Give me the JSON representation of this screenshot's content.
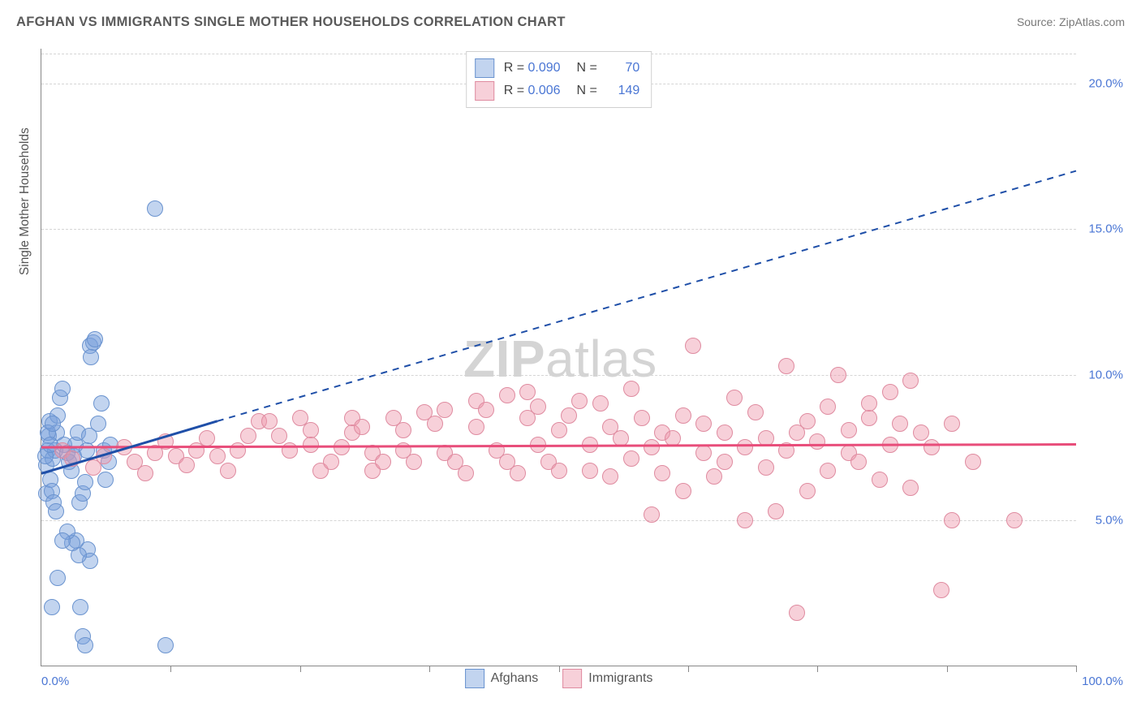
{
  "title": "AFGHAN VS IMMIGRANTS SINGLE MOTHER HOUSEHOLDS CORRELATION CHART",
  "source": "Source: ZipAtlas.com",
  "watermark_bold": "ZIP",
  "watermark_rest": "atlas",
  "chart": {
    "type": "scatter",
    "yaxis_label": "Single Mother Households",
    "xlim": [
      0,
      100
    ],
    "ylim": [
      0,
      21.2
    ],
    "yticks": [
      5.0,
      10.0,
      15.0,
      20.0
    ],
    "xticks_major": [
      0,
      100
    ],
    "xticks_minor": [
      12.5,
      25,
      37.5,
      50,
      62.5,
      75,
      87.5,
      100
    ],
    "xtick_labels": {
      "0": "0.0%",
      "100": "100.0%"
    },
    "ytick_format": "{v}.0%",
    "background_color": "#ffffff",
    "grid_color": "#d5d5d5",
    "axis_color": "#888888",
    "label_color": "#4a76d4",
    "point_radius": 9,
    "series": [
      {
        "name": "Afghans",
        "fill": "rgba(120,160,220,0.45)",
        "stroke": "#6a93cf",
        "line_color": "#1f4fa8",
        "R": "0.090",
        "N": "70",
        "trend_solid": {
          "x1": 0,
          "y1": 6.6,
          "x2": 17,
          "y2": 8.4
        },
        "trend_dash": {
          "x1": 17,
          "y1": 8.4,
          "x2": 100,
          "y2": 17.0
        },
        "points": [
          [
            0.5,
            6.9
          ],
          [
            0.6,
            7.4
          ],
          [
            0.7,
            7.9
          ],
          [
            0.8,
            8.4
          ],
          [
            0.5,
            5.9
          ],
          [
            0.9,
            6.4
          ],
          [
            1.0,
            6.0
          ],
          [
            1.2,
            5.6
          ],
          [
            1.4,
            5.3
          ],
          [
            1.1,
            7.1
          ],
          [
            1.3,
            7.4
          ],
          [
            1.5,
            8.0
          ],
          [
            1.6,
            8.6
          ],
          [
            1.8,
            9.2
          ],
          [
            2.0,
            9.5
          ],
          [
            2.2,
            7.6
          ],
          [
            0.4,
            7.2
          ],
          [
            0.6,
            8.0
          ],
          [
            0.9,
            7.6
          ],
          [
            1.1,
            8.3
          ],
          [
            2.5,
            7.3
          ],
          [
            2.7,
            7.0
          ],
          [
            2.9,
            6.7
          ],
          [
            3.1,
            7.2
          ],
          [
            3.3,
            7.6
          ],
          [
            3.5,
            8.0
          ],
          [
            3.7,
            5.6
          ],
          [
            4.0,
            5.9
          ],
          [
            4.2,
            6.3
          ],
          [
            4.4,
            7.4
          ],
          [
            4.6,
            7.9
          ],
          [
            4.7,
            11.0
          ],
          [
            4.8,
            10.6
          ],
          [
            5.0,
            11.1
          ],
          [
            5.2,
            11.2
          ],
          [
            4.5,
            4.0
          ],
          [
            4.7,
            3.6
          ],
          [
            3.8,
            2.0
          ],
          [
            4.0,
            1.0
          ],
          [
            4.2,
            0.7
          ],
          [
            12.0,
            0.7
          ],
          [
            11.0,
            15.7
          ],
          [
            3.4,
            4.3
          ],
          [
            3.6,
            3.8
          ],
          [
            3.0,
            4.2
          ],
          [
            2.5,
            4.6
          ],
          [
            2.0,
            4.3
          ],
          [
            1.6,
            3.0
          ],
          [
            1.0,
            2.0
          ],
          [
            5.5,
            8.3
          ],
          [
            5.8,
            9.0
          ],
          [
            6.0,
            7.4
          ],
          [
            6.2,
            6.4
          ],
          [
            6.5,
            7.0
          ],
          [
            6.7,
            7.6
          ]
        ]
      },
      {
        "name": "Immigrants",
        "fill": "rgba(238,150,170,0.45)",
        "stroke": "#df8ba0",
        "line_color": "#e84d7a",
        "R": "0.006",
        "N": "149",
        "trend_solid": {
          "x1": 0,
          "y1": 7.5,
          "x2": 100,
          "y2": 7.6
        },
        "points": [
          [
            2,
            7.4
          ],
          [
            3,
            7.1
          ],
          [
            5,
            6.8
          ],
          [
            6,
            7.2
          ],
          [
            8,
            7.5
          ],
          [
            9,
            7.0
          ],
          [
            10,
            6.6
          ],
          [
            11,
            7.3
          ],
          [
            12,
            7.7
          ],
          [
            13,
            7.2
          ],
          [
            14,
            6.9
          ],
          [
            15,
            7.4
          ],
          [
            16,
            7.8
          ],
          [
            17,
            7.2
          ],
          [
            18,
            6.7
          ],
          [
            19,
            7.4
          ],
          [
            20,
            7.9
          ],
          [
            21,
            8.4
          ],
          [
            22,
            8.4
          ],
          [
            23,
            7.9
          ],
          [
            24,
            7.4
          ],
          [
            25,
            8.5
          ],
          [
            26,
            8.1
          ],
          [
            26,
            7.6
          ],
          [
            27,
            6.7
          ],
          [
            28,
            7.0
          ],
          [
            29,
            7.5
          ],
          [
            30,
            8.0
          ],
          [
            30,
            8.5
          ],
          [
            31,
            8.2
          ],
          [
            32,
            7.3
          ],
          [
            32,
            6.7
          ],
          [
            33,
            7.0
          ],
          [
            34,
            8.5
          ],
          [
            35,
            8.1
          ],
          [
            35,
            7.4
          ],
          [
            36,
            7.0
          ],
          [
            37,
            8.7
          ],
          [
            38,
            8.3
          ],
          [
            39,
            8.8
          ],
          [
            39,
            7.3
          ],
          [
            40,
            7.0
          ],
          [
            41,
            6.6
          ],
          [
            42,
            9.1
          ],
          [
            42,
            8.2
          ],
          [
            43,
            8.8
          ],
          [
            44,
            7.4
          ],
          [
            45,
            7.0
          ],
          [
            45,
            9.3
          ],
          [
            46,
            6.6
          ],
          [
            47,
            8.5
          ],
          [
            47,
            9.4
          ],
          [
            48,
            8.9
          ],
          [
            48,
            7.6
          ],
          [
            49,
            7.0
          ],
          [
            50,
            6.7
          ],
          [
            50,
            8.1
          ],
          [
            51,
            8.6
          ],
          [
            52,
            9.1
          ],
          [
            53,
            7.6
          ],
          [
            53,
            6.7
          ],
          [
            54,
            9.0
          ],
          [
            55,
            8.2
          ],
          [
            55,
            6.5
          ],
          [
            56,
            7.8
          ],
          [
            57,
            7.1
          ],
          [
            57,
            9.5
          ],
          [
            58,
            8.5
          ],
          [
            59,
            7.5
          ],
          [
            59,
            5.2
          ],
          [
            60,
            8.0
          ],
          [
            60,
            6.6
          ],
          [
            61,
            7.8
          ],
          [
            62,
            8.6
          ],
          [
            62,
            6.0
          ],
          [
            63,
            11.0
          ],
          [
            64,
            7.3
          ],
          [
            64,
            8.3
          ],
          [
            65,
            6.5
          ],
          [
            66,
            7.0
          ],
          [
            66,
            8.0
          ],
          [
            67,
            9.2
          ],
          [
            68,
            5.0
          ],
          [
            68,
            7.5
          ],
          [
            69,
            8.7
          ],
          [
            70,
            7.8
          ],
          [
            70,
            6.8
          ],
          [
            71,
            5.3
          ],
          [
            72,
            7.4
          ],
          [
            72,
            10.3
          ],
          [
            73,
            8.0
          ],
          [
            73,
            1.8
          ],
          [
            74,
            8.4
          ],
          [
            74,
            6.0
          ],
          [
            75,
            7.7
          ],
          [
            76,
            8.9
          ],
          [
            76,
            6.7
          ],
          [
            77,
            10.0
          ],
          [
            78,
            7.3
          ],
          [
            78,
            8.1
          ],
          [
            79,
            7.0
          ],
          [
            80,
            8.5
          ],
          [
            80,
            9.0
          ],
          [
            81,
            6.4
          ],
          [
            82,
            9.4
          ],
          [
            82,
            7.6
          ],
          [
            83,
            8.3
          ],
          [
            84,
            9.8
          ],
          [
            84,
            6.1
          ],
          [
            85,
            8.0
          ],
          [
            86,
            7.5
          ],
          [
            87,
            2.6
          ],
          [
            88,
            8.3
          ],
          [
            88,
            5.0
          ],
          [
            94,
            5.0
          ],
          [
            90,
            7.0
          ]
        ]
      }
    ],
    "legend_top_labels": {
      "r_prefix": "R =",
      "n_prefix": "N ="
    },
    "legend_bottom": [
      "Afghans",
      "Immigrants"
    ]
  }
}
